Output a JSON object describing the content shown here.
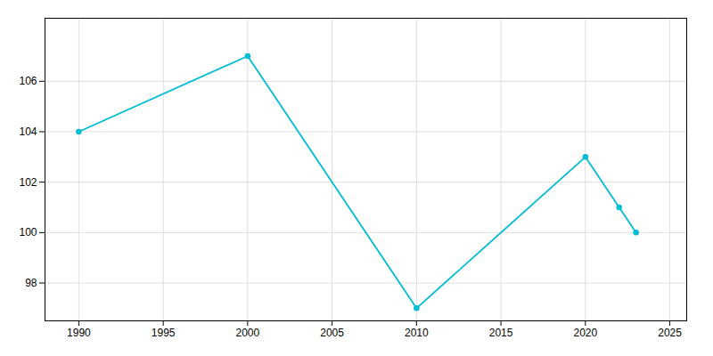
{
  "chart_data": {
    "type": "line",
    "x": [
      1990,
      2000,
      2010,
      2020,
      2022,
      2023
    ],
    "values": [
      104,
      107,
      97,
      103,
      101,
      100
    ],
    "color": "#00bcd4",
    "marker": "circle",
    "xlim": [
      1988,
      2026
    ],
    "ylim": [
      96.5,
      108.5
    ],
    "xticks": [
      1990,
      1995,
      2000,
      2005,
      2010,
      2015,
      2020,
      2025
    ],
    "yticks": [
      98,
      100,
      102,
      104,
      106
    ],
    "grid": true
  }
}
